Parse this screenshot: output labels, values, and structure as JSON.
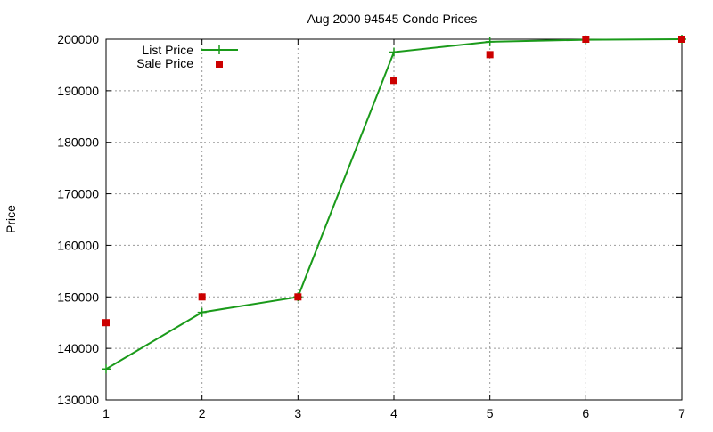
{
  "chart_data": {
    "type": "line",
    "title": "Aug 2000 94545 Condo Prices",
    "xlabel": "",
    "ylabel": "Price",
    "xlim": [
      1,
      7
    ],
    "ylim": [
      130000,
      200000
    ],
    "x_ticks": [
      1,
      2,
      3,
      4,
      5,
      6,
      7
    ],
    "y_ticks": [
      130000,
      140000,
      150000,
      160000,
      170000,
      180000,
      190000,
      200000
    ],
    "grid": true,
    "legend_position": "top-left",
    "series": [
      {
        "name": "List Price",
        "style": "line-with-plus-markers",
        "color": "#1a9a1a",
        "x": [
          1,
          2,
          3,
          4,
          5,
          6,
          7
        ],
        "y": [
          136000,
          147000,
          150000,
          197500,
          199500,
          199900,
          200000
        ]
      },
      {
        "name": "Sale Price",
        "style": "square-markers",
        "color": "#cc0000",
        "x": [
          1,
          2,
          3,
          4,
          5,
          6,
          7
        ],
        "y": [
          145000,
          150000,
          150000,
          192000,
          197000,
          200000,
          200000
        ]
      }
    ]
  }
}
